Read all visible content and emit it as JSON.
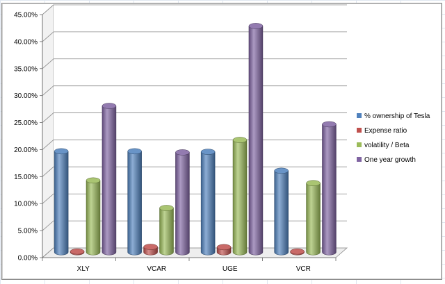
{
  "chart_data": {
    "type": "bar",
    "style": "3d-cylinder",
    "categories": [
      "XLY",
      "VCAR",
      "UGE",
      "VCR"
    ],
    "series": [
      {
        "name": "% ownership of Tesla",
        "color": "#4f81bd",
        "values": [
          0.187,
          0.187,
          0.186,
          0.151
        ]
      },
      {
        "name": "Expense ratio",
        "color": "#c0504d",
        "values": [
          0.0014,
          0.01,
          0.0095,
          0.0014
        ]
      },
      {
        "name": "volatility / Beta",
        "color": "#9bbb59",
        "values": [
          0.133,
          0.082,
          0.208,
          0.128
        ]
      },
      {
        "name": "One year growth",
        "color": "#8064a2",
        "values": [
          0.271,
          0.185,
          0.419,
          0.237
        ]
      }
    ],
    "ylim": [
      0,
      0.45
    ],
    "yticks": [
      "0.00%",
      "5.00%",
      "10.00%",
      "15.00%",
      "20.00%",
      "25.00%",
      "30.00%",
      "35.00%",
      "40.00%",
      "45.00%"
    ],
    "ytick_values": [
      0,
      0.05,
      0.1,
      0.15,
      0.2,
      0.25,
      0.3,
      0.35,
      0.4,
      0.45
    ],
    "grid": true,
    "legend_position": "right"
  }
}
